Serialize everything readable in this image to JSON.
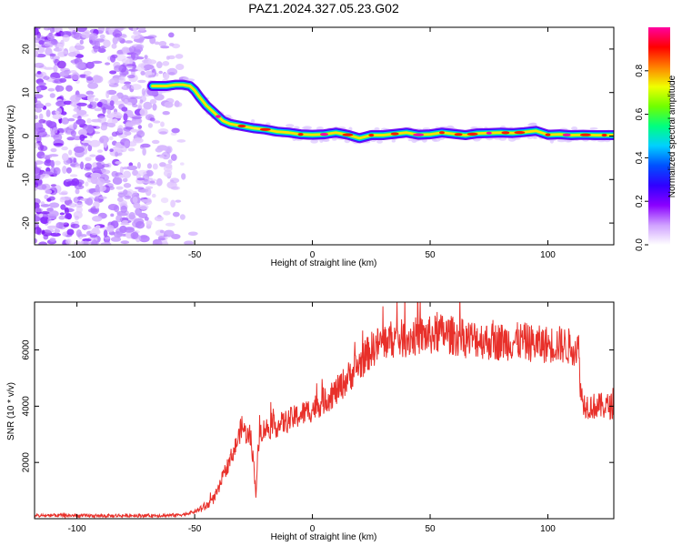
{
  "figure_title": "PAZ1.2024.327.05.23.G02",
  "chart_data": [
    {
      "type": "heatmap",
      "title": "PAZ1.2024.327.05.23.G02",
      "xlabel": "Height of straight line (km)",
      "ylabel": "Frequency (Hz)",
      "xlim": [
        -118,
        128
      ],
      "ylim": [
        -25,
        25
      ],
      "xticks": [
        -100,
        -50,
        0,
        50,
        100
      ],
      "xtick_labels": [
        "-100",
        "-50",
        "0",
        "50",
        "100"
      ],
      "yticks": [
        -20,
        -10,
        0,
        10,
        20
      ],
      "ytick_labels": [
        "-20",
        "-10",
        "0",
        "10",
        "20"
      ],
      "colorbar": {
        "label": "Normalized spectral amplitude",
        "range": [
          0,
          1
        ],
        "ticks": [
          0,
          0.2,
          0.4,
          0.6,
          0.8
        ],
        "tick_labels": [
          "0.0",
          "0.2",
          "0.4",
          "0.6",
          "0.8"
        ],
        "colormap": [
          "#ffffff",
          "#cfa0ff",
          "#8a00ff",
          "#3000ff",
          "#0050ff",
          "#00d0ff",
          "#00ff80",
          "#70ff00",
          "#f0ff00",
          "#ff8000",
          "#ff0000",
          "#ff00a0"
        ]
      },
      "ridge": {
        "x": [
          -68,
          -62,
          -58,
          -55,
          -52,
          -50,
          -48,
          -45,
          -42,
          -40,
          -38,
          -35,
          -30,
          -25,
          -20,
          -15,
          -10,
          -5,
          0,
          5,
          10,
          15,
          20,
          25,
          30,
          35,
          40,
          45,
          50,
          55,
          60,
          65,
          70,
          75,
          80,
          85,
          90,
          95,
          100,
          105,
          110,
          115,
          120,
          125,
          128
        ],
        "y": [
          11.5,
          11.5,
          11.8,
          11.8,
          11.5,
          10.5,
          9.0,
          7.0,
          5.5,
          4.5,
          3.5,
          2.8,
          2.3,
          1.8,
          1.5,
          1.0,
          0.8,
          0.4,
          0.3,
          0.4,
          0.8,
          0.3,
          -0.5,
          0.2,
          0.2,
          0.5,
          0.8,
          0.3,
          0.4,
          0.8,
          0.5,
          0.2,
          0.6,
          0.7,
          0.8,
          0.7,
          0.9,
          1.2,
          0.3,
          0.4,
          0.2,
          0.3,
          0.2,
          0.2,
          0.2
        ]
      },
      "noise_region_x": [
        -118,
        -50
      ]
    },
    {
      "type": "line",
      "xlabel": "Height of straight line (km)",
      "ylabel": "SNR (10 * v/v)",
      "xlim": [
        -118,
        128
      ],
      "ylim": [
        0,
        7700
      ],
      "xticks": [
        -100,
        -50,
        0,
        50,
        100
      ],
      "xtick_labels": [
        "-100",
        "-50",
        "0",
        "50",
        "100"
      ],
      "yticks": [
        2000,
        4000,
        6000
      ],
      "ytick_labels": [
        "2000",
        "4000",
        "6000"
      ],
      "color": "#e8302a",
      "series": [
        {
          "x": [
            -118,
            -110,
            -100,
            -90,
            -80,
            -70,
            -60,
            -55,
            -50,
            -45,
            -42,
            -40,
            -38,
            -35,
            -32,
            -30,
            -28,
            -26,
            -25,
            -24,
            -23,
            -22,
            -20,
            -15,
            -10,
            -5,
            0,
            5,
            10,
            15,
            20,
            25,
            30,
            35,
            40,
            45,
            50,
            55,
            60,
            65,
            70,
            75,
            80,
            85,
            90,
            95,
            100,
            105,
            110,
            113,
            114,
            115,
            118,
            120,
            125,
            128
          ],
          "y": [
            100,
            120,
            110,
            100,
            110,
            110,
            120,
            150,
            250,
            450,
            700,
            1000,
            1500,
            2100,
            2700,
            3300,
            3000,
            2800,
            2000,
            900,
            2500,
            3100,
            3200,
            3300,
            3500,
            3700,
            3900,
            4200,
            4500,
            5000,
            5500,
            6000,
            6300,
            6400,
            6400,
            6500,
            6500,
            6600,
            6500,
            6400,
            6400,
            6300,
            6300,
            6300,
            6300,
            6200,
            6200,
            6200,
            6100,
            6100,
            4500,
            4100,
            4000,
            4000,
            4000,
            4000
          ]
        }
      ]
    }
  ]
}
